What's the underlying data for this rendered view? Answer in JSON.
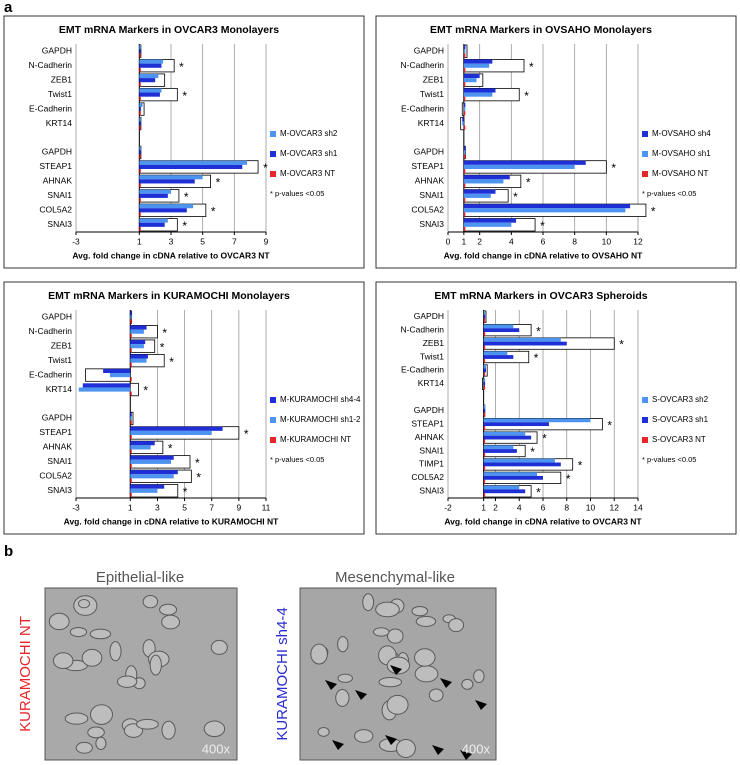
{
  "chart_data": [
    {
      "type": "bar",
      "orientation": "horizontal",
      "title": "EMT mRNA Markers in OVCAR3 Monolayers",
      "categories": [
        "GAPDH",
        "N-Cadherin",
        "ZEB1",
        "Twist1",
        "E-Cadherin",
        "KRT14",
        null,
        "GAPDH",
        "STEAP1",
        "AHNAK",
        "SNAI1",
        "COL5A2",
        "SNAI3"
      ],
      "series": [
        {
          "name": "M-OVCAR3 sh2",
          "color": "#4d94f0",
          "values": [
            1.1,
            2.5,
            2.2,
            2.4,
            1.2,
            1.1,
            null,
            1.1,
            7.8,
            5.0,
            3.0,
            4.4,
            2.8
          ]
        },
        {
          "name": "M-OVCAR3 sh1",
          "color": "#1f2fd6",
          "values": [
            1.1,
            2.4,
            2.0,
            2.3,
            1.1,
            1.1,
            null,
            1.1,
            7.5,
            4.5,
            2.8,
            4.0,
            2.6
          ]
        },
        {
          "name": "M-OVCAR3 NT",
          "color": "#e8262a",
          "values": [
            1,
            1,
            1,
            1,
            1,
            1,
            null,
            1,
            1,
            1,
            1,
            1,
            1
          ]
        },
        {
          "color": "#ffffff",
          "values": [
            1.1,
            3.2,
            2.6,
            3.4,
            1.3,
            1.1,
            null,
            1.1,
            8.5,
            5.5,
            3.5,
            5.2,
            3.4
          ]
        }
      ],
      "annotations": [
        null,
        "*",
        null,
        "*",
        null,
        null,
        null,
        null,
        "*",
        "*",
        "*",
        "*",
        "*"
      ],
      "note": "* p-values <0.05",
      "xlabel": "Avg. fold change in cDNA relative to OVCAR3 NT",
      "xlim": [
        -3,
        9
      ],
      "xticks": [
        -3,
        1,
        3,
        5,
        7,
        9
      ],
      "baseline": 1,
      "grid": true
    },
    {
      "type": "bar",
      "orientation": "horizontal",
      "title": "EMT mRNA Markers in OVSAHO Monolayers",
      "categories": [
        "GAPDH",
        "N-Cadherin",
        "ZEB1",
        "Twist1",
        "E-Cadherin",
        "KRT14",
        null,
        "GAPDH",
        "STEAP1",
        "AHNAK",
        "SNAI1",
        "COL5A2",
        "SNAI3"
      ],
      "series": [
        {
          "name": "M-OVSAHO sh4",
          "color": "#1f2fd6",
          "values": [
            1.1,
            2.8,
            2.0,
            3.0,
            1,
            0.9,
            null,
            1.1,
            8.7,
            3.9,
            3.0,
            11.5,
            4.3
          ]
        },
        {
          "name": "M-OVSAHO sh1",
          "color": "#4d94f0",
          "values": [
            1.1,
            2.6,
            1.8,
            2.8,
            1,
            0.9,
            null,
            1.1,
            8.0,
            3.5,
            2.7,
            11.2,
            4.0
          ]
        },
        {
          "name": "M-OVSAHO NT",
          "color": "#e8262a",
          "values": [
            1,
            1,
            1,
            1,
            1,
            1,
            null,
            1,
            1,
            1,
            1,
            1,
            1
          ]
        },
        {
          "color": "#ffffff",
          "values": [
            1.2,
            4.8,
            2.2,
            4.5,
            0.9,
            0.8,
            null,
            1.1,
            10,
            4.6,
            3.8,
            12.5,
            5.5
          ]
        }
      ],
      "annotations": [
        null,
        "*",
        null,
        "*",
        null,
        null,
        null,
        null,
        "*",
        "*",
        "*",
        "*",
        "*"
      ],
      "note": "* p-values <0.05",
      "xlabel": "Avg. fold change in cDNA relative to OVSAHO NT",
      "xlim": [
        0,
        12
      ],
      "xticks": [
        0,
        1,
        2,
        4,
        6,
        8,
        10,
        12
      ],
      "baseline": 1,
      "grid": true
    },
    {
      "type": "bar",
      "orientation": "horizontal",
      "title": "EMT mRNA Markers in KURAMOCHI Monolayers",
      "categories": [
        "GAPDH",
        "N-Cadherin",
        "ZEB1",
        "Twist1",
        "E-Cadherin",
        "KRT14",
        null,
        "GAPDH",
        "STEAP1",
        "AHNAK",
        "SNAI1",
        "COL5A2",
        "SNAI3"
      ],
      "series": [
        {
          "name": "M-KURAMOCHI sh4-4",
          "color": "#1f2fd6",
          "values": [
            1.1,
            2.2,
            2.1,
            2.3,
            -1.0,
            -2.5,
            null,
            1.1,
            7.8,
            2.8,
            4.2,
            4.5,
            3.5
          ]
        },
        {
          "name": "M-KURAMOCHI sh1-2",
          "color": "#4d94f0",
          "values": [
            1.1,
            2.0,
            2.0,
            2.2,
            -0.5,
            -2.8,
            null,
            1.1,
            7.0,
            2.5,
            4.0,
            4.2,
            3.0
          ]
        },
        {
          "name": "M-KURAMOCHI NT",
          "color": "#e8262a",
          "values": [
            1,
            1,
            1,
            1,
            1,
            1,
            null,
            1,
            1,
            1,
            1,
            1,
            1
          ]
        },
        {
          "color": "#ffffff",
          "values": [
            1.1,
            3.0,
            2.8,
            3.5,
            -2.3,
            1.6,
            null,
            1.2,
            9.0,
            3.4,
            5.4,
            5.5,
            4.5
          ]
        }
      ],
      "annotations": [
        null,
        "*",
        "*",
        "*",
        null,
        "*",
        null,
        null,
        "*",
        "*",
        "*",
        "*",
        "*"
      ],
      "note": "* p-values <0.05",
      "xlabel": "Avg. fold change in cDNA relative to KURAMOCHI NT",
      "xlim": [
        -3,
        11
      ],
      "xticks": [
        -3,
        1,
        3,
        5,
        7,
        9,
        11
      ],
      "baseline": 1,
      "grid": true
    },
    {
      "type": "bar",
      "orientation": "horizontal",
      "title": "EMT mRNA Markers in OVCAR3 Spheroids",
      "categories": [
        "GAPDH",
        "N-Cadherin",
        "ZEB1",
        "Twist1",
        "E-Cadherin",
        "KRT14",
        null,
        "GAPDH",
        "STEAP1",
        "AHNAK",
        "SNAI1",
        "TIMP1",
        "COL5A2",
        "SNAI3"
      ],
      "series": [
        {
          "name": "S-OVCAR3 sh2",
          "color": "#4d94f0",
          "values": [
            1.1,
            3.5,
            7.5,
            3.0,
            1.2,
            1,
            null,
            1,
            10,
            4.5,
            3.5,
            7.0,
            5.5,
            4.0
          ]
        },
        {
          "name": "S-OVCAR3 sh1",
          "color": "#1f2fd6",
          "values": [
            1.1,
            4.0,
            8.0,
            3.5,
            1.2,
            1,
            null,
            1,
            6.5,
            5.0,
            3.8,
            7.5,
            6.0,
            4.5
          ]
        },
        {
          "name": "S-OVCAR3 NT",
          "color": "#e8262a",
          "values": [
            1,
            1,
            1,
            1,
            1,
            1,
            null,
            1,
            1,
            1,
            1,
            1,
            1,
            1
          ]
        },
        {
          "color": "#ffffff",
          "values": [
            1.2,
            5.0,
            12,
            4.8,
            1.3,
            0.9,
            null,
            1.1,
            11,
            5.5,
            4.5,
            8.5,
            7.5,
            5.0
          ]
        }
      ],
      "annotations": [
        null,
        "*",
        "*",
        "*",
        null,
        null,
        null,
        null,
        "*",
        "*",
        "*",
        "*",
        "*",
        "*"
      ],
      "note": "* p-values <0.05",
      "xlabel": "Avg. fold change in cDNA relative to OVCAR3 NT",
      "xlim": [
        -2,
        14
      ],
      "xticks": [
        -2,
        1,
        2,
        4,
        6,
        8,
        10,
        12,
        14
      ],
      "baseline": 1,
      "grid": true
    }
  ],
  "panel_labels": [
    "a",
    "b"
  ],
  "micrographs": [
    {
      "title": "Epithelial-like",
      "label": "KURAMOCHI NT",
      "magnification": "400x"
    },
    {
      "title": "Mesenchymal-like",
      "label": "KURAMOCHI sh4-4",
      "magnification": "400x"
    }
  ]
}
